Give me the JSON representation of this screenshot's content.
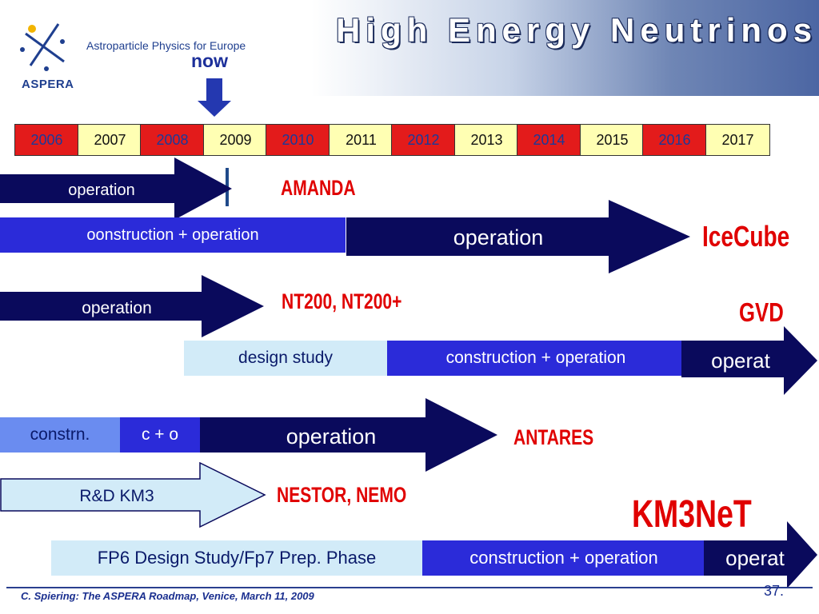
{
  "header": {
    "logo_text": "ASPERA",
    "logo_subtitle": "Astroparticle Physics for Europe",
    "title": "High Energy Neutrinos",
    "now_label": "now"
  },
  "timeline": {
    "years": [
      {
        "label": "2006",
        "color": "#e31b1b"
      },
      {
        "label": "2007",
        "color": "#ffffb3"
      },
      {
        "label": "2008",
        "color": "#e31b1b"
      },
      {
        "label": "2009",
        "color": "#ffffb3"
      },
      {
        "label": "2010",
        "color": "#e31b1b"
      },
      {
        "label": "2011",
        "color": "#ffffb3"
      },
      {
        "label": "2012",
        "color": "#e31b1b"
      },
      {
        "label": "2013",
        "color": "#ffffb3"
      },
      {
        "label": "2014",
        "color": "#e31b1b"
      },
      {
        "label": "2015",
        "color": "#ffffb3"
      },
      {
        "label": "2016",
        "color": "#e31b1b"
      },
      {
        "label": "2017",
        "color": "#ffffb3"
      }
    ]
  },
  "projects": {
    "amanda": {
      "name": "AMANDA",
      "operation": "operation"
    },
    "icecube": {
      "name": "IceCube",
      "construction": "oonstruction + operation",
      "operation": "operation"
    },
    "nt200": {
      "name": "NT200, NT200+",
      "operation": "operation"
    },
    "gvd": {
      "name": "GVD",
      "design": "design study",
      "construction": "construction + operation",
      "operation": "operat"
    },
    "antares": {
      "name": "ANTARES",
      "constrn": "constrn.",
      "co": "c + o",
      "operation": "operation"
    },
    "nestor": {
      "name": "NESTOR, NEMO",
      "rd": "R&D KM3"
    },
    "km3net": {
      "name": "KM3NeT",
      "design": "FP6 Design Study/Fp7 Prep. Phase",
      "construction": "construction + operation",
      "operation": "operat"
    }
  },
  "colors": {
    "navy": "#0a0a5c",
    "blue": "#2b2bd9",
    "light_blue": "#d2ebf8",
    "red_label": "#e00000"
  },
  "footer": {
    "citation": "C. Spiering: The ASPERA Roadmap, Venice,  March 11, 2009",
    "page": "37."
  }
}
